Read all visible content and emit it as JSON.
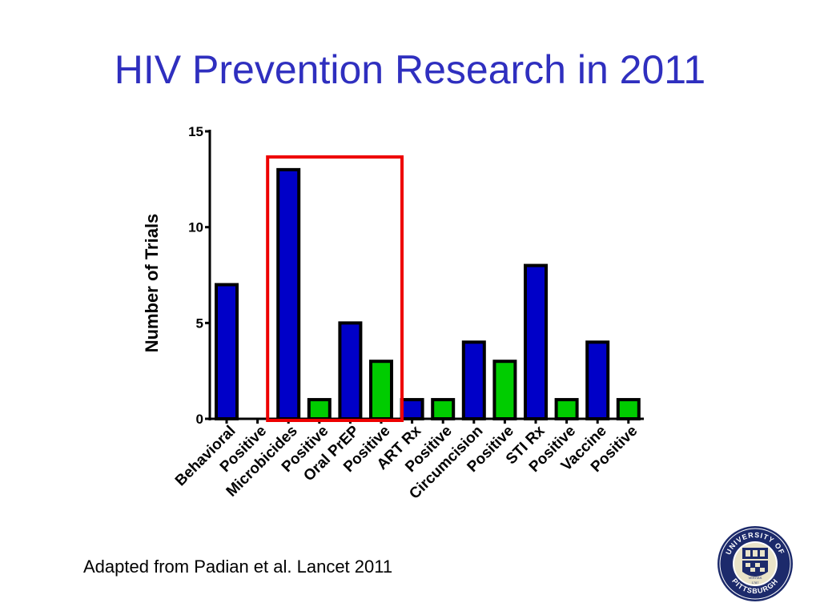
{
  "slide": {
    "title": "HIV Prevention Research in 2011",
    "citation": "Adapted from Padian et al. Lancet 2011",
    "logo": {
      "name": "University of Pittsburgh seal",
      "ring_text_top": "UNIVERSITY OF",
      "ring_text_bottom": "PITTSBURGH",
      "banner_text": "VERITAS",
      "year": "1787"
    }
  },
  "chart_data": {
    "type": "bar",
    "categories": [
      "Behavioral",
      "Positive",
      "Microbicides",
      "Positive",
      "Oral PrEP",
      "Positive",
      "ART Rx",
      "Positive",
      "Circumcision",
      "Positive",
      "STI Rx",
      "Positive",
      "Vaccine",
      "Positive"
    ],
    "values": [
      7,
      0,
      13,
      1,
      5,
      3,
      1,
      1,
      4,
      3,
      8,
      1,
      4,
      1
    ],
    "bar_colors": [
      "#0000c8",
      "#00cc00",
      "#0000c8",
      "#00cc00",
      "#0000c8",
      "#00cc00",
      "#0000c8",
      "#00cc00",
      "#0000c8",
      "#00cc00",
      "#0000c8",
      "#00cc00",
      "#0000c8",
      "#00cc00"
    ],
    "ylabel": "Number of Trials",
    "xlabel": "",
    "ylim": [
      0,
      15
    ],
    "yticks": [
      0,
      5,
      10,
      15
    ],
    "grid": false,
    "highlight": {
      "from_category": 2,
      "to_category": 5,
      "color": "#ee0000"
    }
  }
}
